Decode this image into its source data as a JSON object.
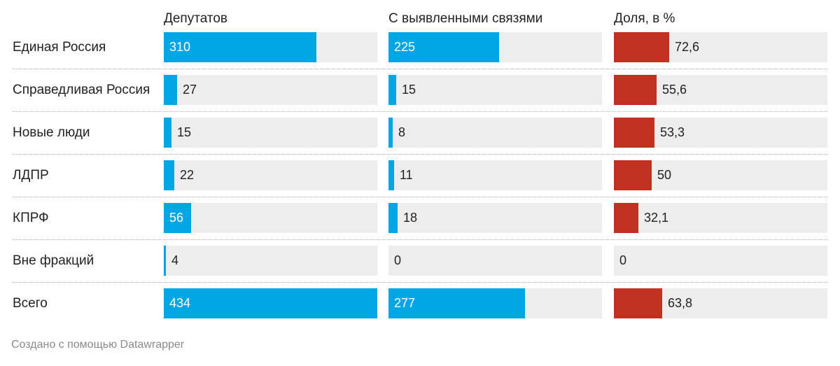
{
  "chart_data": {
    "type": "table",
    "columns": [
      {
        "key": "deputies",
        "header": "Депутатов",
        "max": 434,
        "color": "#00a5e3"
      },
      {
        "key": "linked",
        "header": "С выявленными связями",
        "max": 434,
        "color": "#00a5e3"
      },
      {
        "key": "share",
        "header": "Доля, в %",
        "max": 280,
        "color": "#c0311f"
      }
    ],
    "rows": [
      {
        "label": "Единая Россия",
        "deputies": 310,
        "linked": 225,
        "share": 72.6,
        "deputies_text": "310",
        "linked_text": "225",
        "share_text": "72,6"
      },
      {
        "label": "Справедливая Россия",
        "deputies": 27,
        "linked": 15,
        "share": 55.6,
        "deputies_text": "27",
        "linked_text": "15",
        "share_text": "55,6"
      },
      {
        "label": "Новые люди",
        "deputies": 15,
        "linked": 8,
        "share": 53.3,
        "deputies_text": "15",
        "linked_text": "8",
        "share_text": "53,3"
      },
      {
        "label": "ЛДПР",
        "deputies": 22,
        "linked": 11,
        "share": 50,
        "deputies_text": "22",
        "linked_text": "11",
        "share_text": "50"
      },
      {
        "label": "КПРФ",
        "deputies": 56,
        "linked": 18,
        "share": 32.1,
        "deputies_text": "56",
        "linked_text": "18",
        "share_text": "32,1"
      },
      {
        "label": "Вне фракций",
        "deputies": 4,
        "linked": 0,
        "share": 0,
        "deputies_text": "4",
        "linked_text": "0",
        "share_text": "0"
      },
      {
        "label": "Всего",
        "deputies": 434,
        "linked": 277,
        "share": 63.8,
        "deputies_text": "434",
        "linked_text": "277",
        "share_text": "63,8"
      }
    ]
  },
  "footer": "Создано с помощью Datawrapper"
}
